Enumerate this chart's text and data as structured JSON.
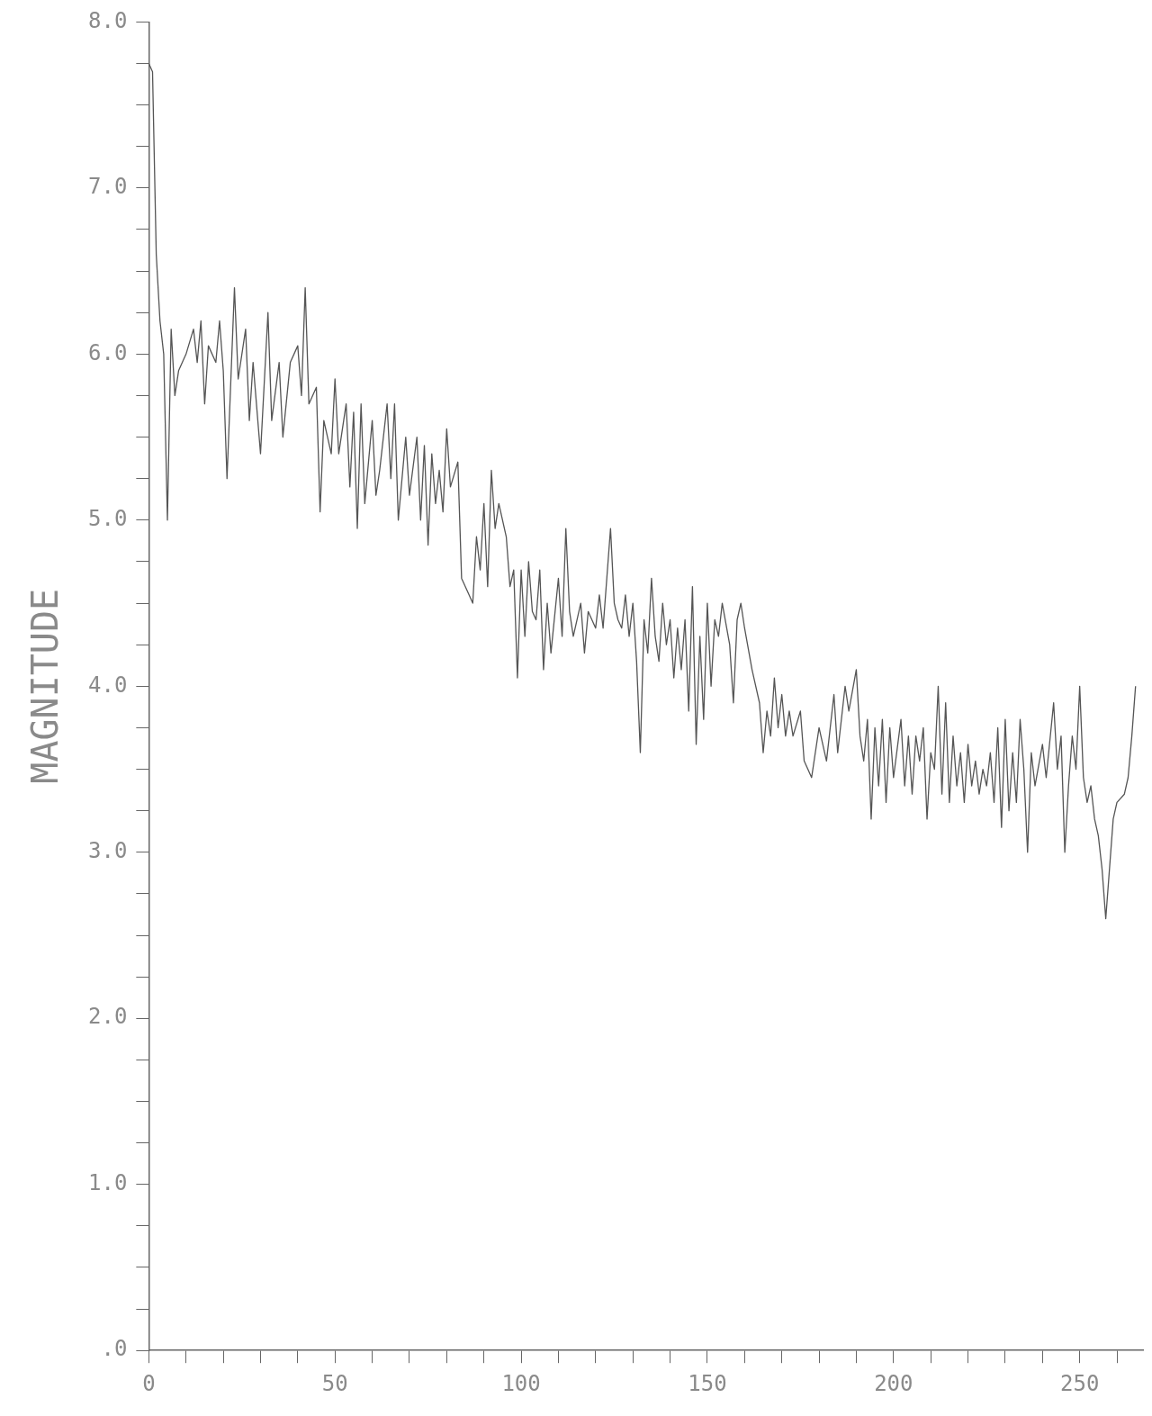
{
  "chart_data": {
    "type": "line",
    "ylabel": "MAGNITUDE",
    "xlim": [
      0,
      267
    ],
    "ylim": [
      0,
      8
    ],
    "xticks": [
      0,
      {
        "value": 10,
        "label": null
      },
      {
        "value": 20,
        "label": null
      },
      {
        "value": 30,
        "label": null
      },
      {
        "value": 40,
        "label": null
      },
      50,
      {
        "value": 60,
        "label": null
      },
      {
        "value": 70,
        "label": null
      },
      {
        "value": 80,
        "label": null
      },
      {
        "value": 90,
        "label": null
      },
      100,
      {
        "value": 110,
        "label": null
      },
      {
        "value": 120,
        "label": null
      },
      {
        "value": 130,
        "label": null
      },
      {
        "value": 140,
        "label": null
      },
      150,
      {
        "value": 160,
        "label": null
      },
      {
        "value": 170,
        "label": null
      },
      {
        "value": 180,
        "label": null
      },
      {
        "value": 190,
        "label": null
      },
      200,
      {
        "value": 210,
        "label": null
      },
      {
        "value": 220,
        "label": null
      },
      {
        "value": 230,
        "label": null
      },
      {
        "value": 240,
        "label": null
      },
      250,
      {
        "value": 260,
        "label": null
      }
    ],
    "yticks": [
      {
        "value": 0,
        "label": ".0"
      },
      {
        "value": 0.25,
        "label": null
      },
      {
        "value": 0.5,
        "label": null
      },
      {
        "value": 0.75,
        "label": null
      },
      {
        "value": 1,
        "label": "1.0"
      },
      {
        "value": 1.25,
        "label": null
      },
      {
        "value": 1.5,
        "label": null
      },
      {
        "value": 1.75,
        "label": null
      },
      {
        "value": 2,
        "label": "2.0"
      },
      {
        "value": 2.25,
        "label": null
      },
      {
        "value": 2.5,
        "label": null
      },
      {
        "value": 2.75,
        "label": null
      },
      {
        "value": 3,
        "label": "3.0"
      },
      {
        "value": 3.25,
        "label": null
      },
      {
        "value": 3.5,
        "label": null
      },
      {
        "value": 3.75,
        "label": null
      },
      {
        "value": 4,
        "label": "4.0"
      },
      {
        "value": 4.25,
        "label": null
      },
      {
        "value": 4.5,
        "label": null
      },
      {
        "value": 4.75,
        "label": null
      },
      {
        "value": 5,
        "label": "5.0"
      },
      {
        "value": 5.25,
        "label": null
      },
      {
        "value": 5.5,
        "label": null
      },
      {
        "value": 5.75,
        "label": null
      },
      {
        "value": 6,
        "label": "6.0"
      },
      {
        "value": 6.25,
        "label": null
      },
      {
        "value": 6.5,
        "label": null
      },
      {
        "value": 6.75,
        "label": null
      },
      {
        "value": 7,
        "label": "7.0"
      },
      {
        "value": 7.25,
        "label": null
      },
      {
        "value": 7.5,
        "label": null
      },
      {
        "value": 7.75,
        "label": null
      },
      {
        "value": 8,
        "label": "8.0"
      }
    ],
    "grid": false,
    "legend": false,
    "marker": "none",
    "line_style": "solid",
    "x": [
      0,
      1,
      2,
      3,
      4,
      5,
      6,
      7,
      8,
      10,
      12,
      13,
      14,
      15,
      16,
      18,
      19,
      20,
      21,
      23,
      24,
      26,
      27,
      28,
      30,
      32,
      33,
      35,
      36,
      38,
      40,
      41,
      42,
      43,
      45,
      46,
      47,
      49,
      50,
      51,
      53,
      54,
      55,
      56,
      57,
      58,
      60,
      61,
      62,
      64,
      65,
      66,
      67,
      69,
      70,
      72,
      73,
      74,
      75,
      76,
      77,
      78,
      79,
      80,
      81,
      83,
      84,
      86,
      87,
      88,
      89,
      90,
      91,
      92,
      93,
      94,
      96,
      97,
      98,
      99,
      100,
      101,
      102,
      103,
      104,
      105,
      106,
      107,
      108,
      110,
      111,
      112,
      113,
      114,
      116,
      117,
      118,
      120,
      121,
      122,
      124,
      125,
      126,
      127,
      128,
      129,
      130,
      131,
      132,
      133,
      134,
      135,
      136,
      137,
      138,
      139,
      140,
      141,
      142,
      143,
      144,
      145,
      146,
      147,
      148,
      149,
      150,
      151,
      152,
      153,
      154,
      156,
      157,
      158,
      159,
      160,
      162,
      164,
      165,
      166,
      167,
      168,
      169,
      170,
      171,
      172,
      173,
      175,
      176,
      178,
      180,
      182,
      184,
      185,
      187,
      188,
      190,
      191,
      192,
      193,
      194,
      195,
      196,
      197,
      198,
      199,
      200,
      202,
      203,
      204,
      205,
      206,
      207,
      208,
      209,
      210,
      211,
      212,
      213,
      214,
      215,
      216,
      217,
      218,
      219,
      220,
      221,
      222,
      223,
      224,
      225,
      226,
      227,
      228,
      229,
      230,
      231,
      232,
      233,
      234,
      235,
      236,
      237,
      238,
      240,
      241,
      243,
      244,
      245,
      246,
      247,
      248,
      249,
      250,
      251,
      252,
      253,
      254,
      255,
      256,
      257,
      258,
      259,
      260,
      262,
      263,
      264,
      265
    ],
    "series": [
      {
        "color": "#555555",
        "values": [
          7.75,
          7.7,
          6.6,
          6.2,
          6.0,
          5.0,
          6.15,
          5.75,
          5.9,
          6.0,
          6.15,
          5.95,
          6.2,
          5.7,
          6.05,
          5.95,
          6.2,
          5.9,
          5.25,
          6.4,
          5.85,
          6.15,
          5.6,
          5.95,
          5.4,
          6.25,
          5.6,
          5.95,
          5.5,
          5.95,
          6.05,
          5.75,
          6.4,
          5.7,
          5.8,
          5.05,
          5.6,
          5.4,
          5.85,
          5.4,
          5.7,
          5.2,
          5.65,
          4.95,
          5.7,
          5.1,
          5.6,
          5.15,
          5.3,
          5.7,
          5.25,
          5.7,
          5.0,
          5.5,
          5.15,
          5.5,
          5.0,
          5.45,
          4.85,
          5.4,
          5.1,
          5.3,
          5.05,
          5.55,
          5.2,
          5.35,
          4.65,
          4.55,
          4.5,
          4.9,
          4.7,
          5.1,
          4.6,
          5.3,
          4.95,
          5.1,
          4.9,
          4.6,
          4.7,
          4.05,
          4.7,
          4.3,
          4.75,
          4.45,
          4.4,
          4.7,
          4.1,
          4.5,
          4.2,
          4.65,
          4.3,
          4.95,
          4.45,
          4.3,
          4.5,
          4.2,
          4.45,
          4.35,
          4.55,
          4.35,
          4.95,
          4.5,
          4.4,
          4.35,
          4.55,
          4.3,
          4.5,
          4.15,
          3.6,
          4.4,
          4.2,
          4.65,
          4.3,
          4.15,
          4.5,
          4.25,
          4.4,
          4.05,
          4.35,
          4.1,
          4.4,
          3.85,
          4.6,
          3.65,
          4.3,
          3.8,
          4.5,
          4.0,
          4.4,
          4.3,
          4.5,
          4.25,
          3.9,
          4.4,
          4.5,
          4.35,
          4.1,
          3.9,
          3.6,
          3.85,
          3.7,
          4.05,
          3.75,
          3.95,
          3.7,
          3.85,
          3.7,
          3.85,
          3.55,
          3.45,
          3.75,
          3.55,
          3.95,
          3.6,
          4.0,
          3.85,
          4.1,
          3.7,
          3.55,
          3.8,
          3.2,
          3.75,
          3.4,
          3.8,
          3.3,
          3.75,
          3.45,
          3.8,
          3.4,
          3.7,
          3.35,
          3.7,
          3.55,
          3.75,
          3.2,
          3.6,
          3.5,
          4.0,
          3.35,
          3.9,
          3.3,
          3.7,
          3.4,
          3.6,
          3.3,
          3.65,
          3.4,
          3.55,
          3.35,
          3.5,
          3.4,
          3.6,
          3.3,
          3.75,
          3.15,
          3.8,
          3.25,
          3.6,
          3.3,
          3.8,
          3.5,
          3.0,
          3.6,
          3.4,
          3.65,
          3.45,
          3.9,
          3.5,
          3.7,
          3.0,
          3.4,
          3.7,
          3.5,
          4.0,
          3.45,
          3.3,
          3.4,
          3.2,
          3.1,
          2.9,
          2.6,
          2.9,
          3.2,
          3.3,
          3.35,
          3.45,
          3.7,
          4.0
        ]
      }
    ]
  }
}
